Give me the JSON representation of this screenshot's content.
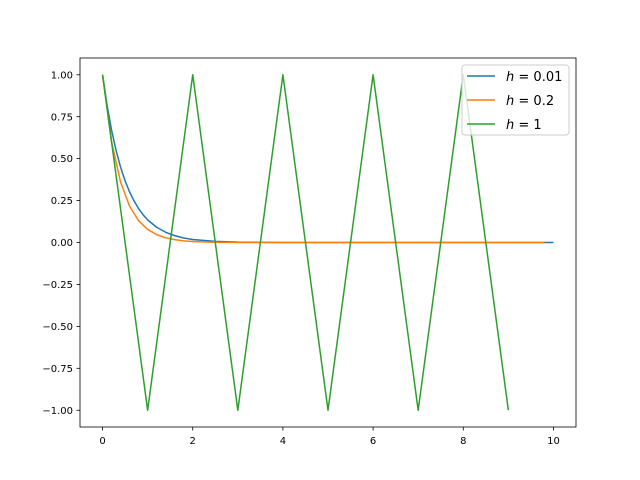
{
  "chart_data": {
    "type": "line",
    "title": "",
    "xlabel": "",
    "ylabel": "",
    "xlim": [
      -0.5,
      10.5
    ],
    "ylim": [
      -1.1,
      1.1
    ],
    "xticks": [
      0,
      2,
      4,
      6,
      8,
      10
    ],
    "xtick_labels": [
      "0",
      "2",
      "4",
      "6",
      "8",
      "10"
    ],
    "yticks": [
      -1.0,
      -0.75,
      -0.5,
      -0.25,
      0.0,
      0.25,
      0.5,
      0.75,
      1.0
    ],
    "ytick_labels": [
      "−1.00",
      "−0.75",
      "−0.50",
      "−0.25",
      "0.00",
      "0.25",
      "0.50",
      "0.75",
      "1.00"
    ],
    "grid": false,
    "legend": {
      "position": "top-right",
      "entries": [
        {
          "var": "h",
          "value": "0.01"
        },
        {
          "var": "h",
          "value": "0.2"
        },
        {
          "var": "h",
          "value": "1"
        }
      ]
    },
    "series": [
      {
        "name": "h = 0.01",
        "color": "#1f77b4",
        "x": [
          0,
          0.1,
          0.2,
          0.3,
          0.4,
          0.5,
          0.6,
          0.7,
          0.8,
          0.9,
          1.0,
          1.2,
          1.4,
          1.6,
          1.8,
          2.0,
          2.5,
          3.0,
          3.5,
          4.0,
          5.0,
          6.0,
          7.0,
          8.0,
          9.0,
          10.0
        ],
        "y": [
          1.0,
          0.819,
          0.67,
          0.549,
          0.449,
          0.368,
          0.301,
          0.247,
          0.202,
          0.165,
          0.135,
          0.091,
          0.061,
          0.041,
          0.027,
          0.018,
          0.007,
          0.002,
          0.001,
          0.0,
          0.0,
          0.0,
          0.0,
          0.0,
          0.0,
          0.0
        ]
      },
      {
        "name": "h = 0.2",
        "color": "#ff7f0e",
        "x": [
          0,
          0.2,
          0.4,
          0.6,
          0.8,
          1.0,
          1.2,
          1.4,
          1.6,
          1.8,
          2.0,
          2.2,
          2.4,
          2.6,
          2.8,
          3.0,
          3.4,
          3.8,
          4.2,
          5.0,
          6.0,
          7.0,
          8.0,
          9.0,
          9.8
        ],
        "y": [
          1.0,
          0.6,
          0.36,
          0.216,
          0.13,
          0.078,
          0.047,
          0.028,
          0.017,
          0.01,
          0.006,
          0.004,
          0.002,
          0.001,
          0.001,
          0.0,
          0.0,
          0.0,
          0.0,
          0.0,
          0.0,
          0.0,
          0.0,
          0.0,
          0.0
        ]
      },
      {
        "name": "h = 1",
        "color": "#2ca02c",
        "x": [
          0,
          1,
          2,
          3,
          4,
          5,
          6,
          7,
          8,
          9
        ],
        "y": [
          1,
          -1,
          1,
          -1,
          1,
          -1,
          1,
          -1,
          1,
          -1
        ]
      }
    ]
  }
}
